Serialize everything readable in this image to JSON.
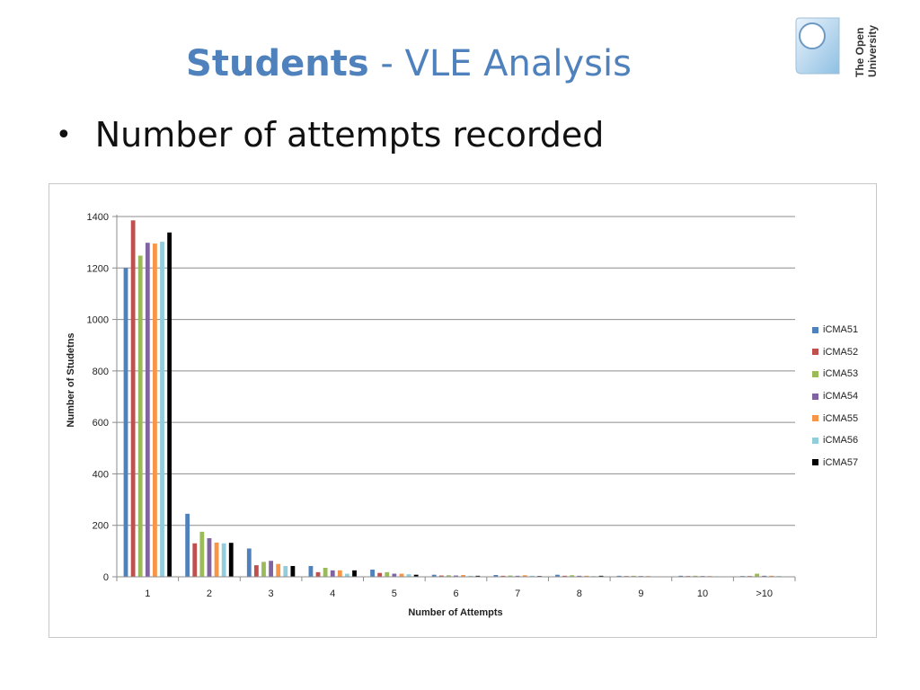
{
  "slide": {
    "title_bold": "Students",
    "title_rest": " - VLE Analysis",
    "bullet": "Number of attempts recorded",
    "logo_line1": "The Open",
    "logo_line2": "University"
  },
  "chart_data": {
    "type": "bar",
    "title": "",
    "xlabel": "Number of Attempts",
    "ylabel": "Number of Studetns",
    "ylim": [
      0,
      1400
    ],
    "yticks": [
      0,
      200,
      400,
      600,
      800,
      1000,
      1200,
      1400
    ],
    "grid": true,
    "legend_position": "right",
    "categories": [
      "1",
      "2",
      "3",
      "4",
      "5",
      "6",
      "7",
      "8",
      "9",
      "10",
      ">10"
    ],
    "series": [
      {
        "name": "iCMA51",
        "color": "#4f81bd",
        "values": [
          1200,
          245,
          110,
          42,
          28,
          8,
          7,
          8,
          4,
          4,
          3
        ]
      },
      {
        "name": "iCMA52",
        "color": "#c0504d",
        "values": [
          1385,
          130,
          45,
          18,
          15,
          5,
          4,
          4,
          3,
          3,
          3
        ]
      },
      {
        "name": "iCMA53",
        "color": "#9bbb59",
        "values": [
          1248,
          175,
          58,
          35,
          18,
          6,
          5,
          6,
          4,
          4,
          12
        ]
      },
      {
        "name": "iCMA54",
        "color": "#8064a2",
        "values": [
          1298,
          150,
          62,
          25,
          12,
          5,
          4,
          4,
          3,
          3,
          4
        ]
      },
      {
        "name": "iCMA55",
        "color": "#f79646",
        "values": [
          1295,
          133,
          50,
          25,
          12,
          7,
          6,
          4,
          3,
          3,
          4
        ]
      },
      {
        "name": "iCMA56",
        "color": "#92cddc",
        "values": [
          1302,
          130,
          42,
          12,
          10,
          4,
          4,
          3,
          0,
          2,
          3
        ]
      },
      {
        "name": "iCMA57",
        "color": "#000000",
        "values": [
          1338,
          132,
          42,
          25,
          8,
          4,
          3,
          4,
          0,
          0,
          0
        ]
      }
    ]
  }
}
